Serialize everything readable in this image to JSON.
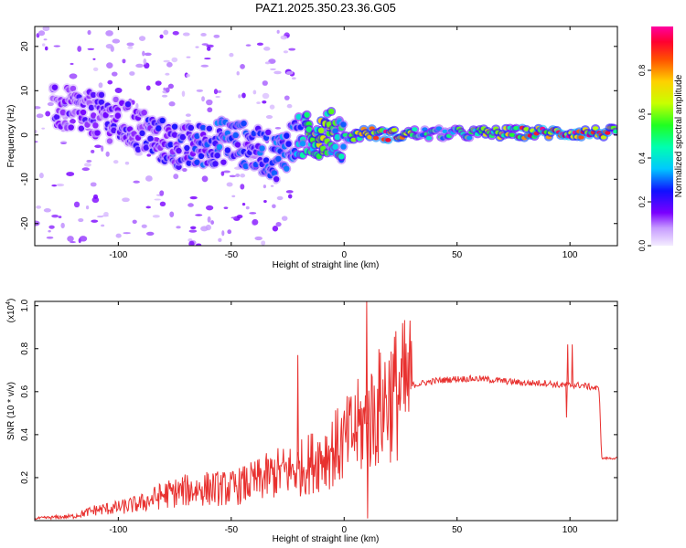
{
  "figure_title": "PAZ1.2025.350.23.36.G05",
  "chart_data": [
    {
      "type": "heatmap",
      "title": "PAZ1.2025.350.23.36.G05",
      "xlabel": "Height of straight line (km)",
      "ylabel": "Frequency (Hz)",
      "xlim": [
        -137,
        121
      ],
      "ylim": [
        -25,
        24.5
      ],
      "xticks": [
        -100,
        -50,
        0,
        50,
        100
      ],
      "yticks": [
        -20,
        -10,
        0,
        10,
        20
      ],
      "colorbar": {
        "label": "Normalized spectral amplitude",
        "range": [
          0,
          1
        ],
        "ticks": [
          "0.0",
          "0.2",
          "0.4",
          "0.6",
          "0.8"
        ]
      },
      "ridge": [
        {
          "x": -125,
          "y": 6
        },
        {
          "x": -110,
          "y": 4.5
        },
        {
          "x": -100,
          "y": 3
        },
        {
          "x": -90,
          "y": 1
        },
        {
          "x": -80,
          "y": -1.5
        },
        {
          "x": -70,
          "y": -3
        },
        {
          "x": -60,
          "y": -2
        },
        {
          "x": -50,
          "y": -1
        },
        {
          "x": -40,
          "y": -3
        },
        {
          "x": -30,
          "y": -5
        },
        {
          "x": -22,
          "y": -1
        },
        {
          "x": -15,
          "y": 0
        },
        {
          "x": -5,
          "y": 0.5
        },
        {
          "x": 0,
          "y": -1
        },
        {
          "x": 5,
          "y": 0
        },
        {
          "x": 10,
          "y": 0.5
        },
        {
          "x": 20,
          "y": 0
        },
        {
          "x": 30,
          "y": 0.3
        },
        {
          "x": 50,
          "y": 0.3
        },
        {
          "x": 80,
          "y": 0.5
        },
        {
          "x": 100,
          "y": 0.5
        },
        {
          "x": 121,
          "y": 0.5
        }
      ],
      "amplitude": [
        {
          "x": -130,
          "a": 0.18
        },
        {
          "x": -110,
          "a": 0.2
        },
        {
          "x": -90,
          "a": 0.22
        },
        {
          "x": -70,
          "a": 0.25
        },
        {
          "x": -55,
          "a": 0.3
        },
        {
          "x": -40,
          "a": 0.28
        },
        {
          "x": -30,
          "a": 0.3
        },
        {
          "x": -20,
          "a": 0.4
        },
        {
          "x": -10,
          "a": 0.7
        },
        {
          "x": 0,
          "a": 0.45
        },
        {
          "x": 10,
          "a": 0.8
        },
        {
          "x": 20,
          "a": 0.95
        },
        {
          "x": 35,
          "a": 0.5
        },
        {
          "x": 55,
          "a": 0.55
        },
        {
          "x": 75,
          "a": 0.8
        },
        {
          "x": 90,
          "a": 0.92
        },
        {
          "x": 105,
          "a": 0.9
        },
        {
          "x": 121,
          "a": 0.85
        }
      ]
    },
    {
      "type": "line",
      "title": "",
      "xlabel": "Height of straight line (km)",
      "ylabel": "SNR (10 * v/v)",
      "y_scale_label": "(x10",
      "y_scale_exp": "4",
      "y_scale_close": ")",
      "xlim": [
        -137,
        121
      ],
      "ylim": [
        0,
        1.02
      ],
      "xticks": [
        -100,
        -50,
        0,
        50,
        100
      ],
      "yticks": [
        "0.2",
        "0.4",
        "0.6",
        "0.8",
        "1.0"
      ],
      "color": "#e8312f",
      "spikes": [
        {
          "x": -20.5,
          "y": 0.77
        },
        {
          "x": 10,
          "y": 1.02
        },
        {
          "x": 10.4,
          "y": 0.01
        },
        {
          "x": 99,
          "y": 0.82
        },
        {
          "x": 101,
          "y": 0.82
        },
        {
          "x": 98.5,
          "y": 0.48
        }
      ],
      "series": [
        {
          "x": -137,
          "y": 0.01
        },
        {
          "x": -120,
          "y": 0.02
        },
        {
          "x": -110,
          "y": 0.05
        },
        {
          "x": -100,
          "y": 0.06
        },
        {
          "x": -90,
          "y": 0.08
        },
        {
          "x": -80,
          "y": 0.12
        },
        {
          "x": -70,
          "y": 0.14
        },
        {
          "x": -60,
          "y": 0.15
        },
        {
          "x": -50,
          "y": 0.15
        },
        {
          "x": -40,
          "y": 0.18
        },
        {
          "x": -30,
          "y": 0.22
        },
        {
          "x": -20,
          "y": 0.24
        },
        {
          "x": -10,
          "y": 0.3
        },
        {
          "x": 0,
          "y": 0.36
        },
        {
          "x": 5,
          "y": 0.42
        },
        {
          "x": 10,
          "y": 0.45
        },
        {
          "x": 15,
          "y": 0.52
        },
        {
          "x": 20,
          "y": 0.58
        },
        {
          "x": 25,
          "y": 0.6
        },
        {
          "x": 30,
          "y": 0.63
        },
        {
          "x": 40,
          "y": 0.65
        },
        {
          "x": 50,
          "y": 0.66
        },
        {
          "x": 60,
          "y": 0.66
        },
        {
          "x": 70,
          "y": 0.65
        },
        {
          "x": 80,
          "y": 0.64
        },
        {
          "x": 90,
          "y": 0.64
        },
        {
          "x": 95,
          "y": 0.63
        },
        {
          "x": 100,
          "y": 0.63
        },
        {
          "x": 105,
          "y": 0.63
        },
        {
          "x": 110,
          "y": 0.62
        },
        {
          "x": 113,
          "y": 0.61
        },
        {
          "x": 114,
          "y": 0.29
        },
        {
          "x": 121,
          "y": 0.29
        }
      ]
    }
  ]
}
